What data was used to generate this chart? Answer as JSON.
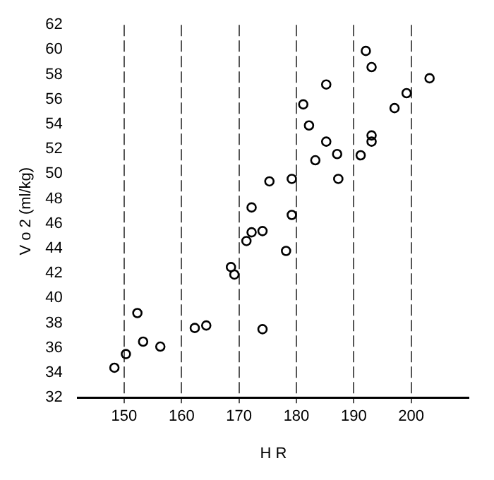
{
  "chart_data": {
    "type": "scatter",
    "xlabel": "H R",
    "ylabel": "V o 2 (ml/kg)",
    "x": [
      148.3,
      150.3,
      152.3,
      153.3,
      156.3,
      162.3,
      164.3,
      168.6,
      169.2,
      171.3,
      172.2,
      174.1,
      174.1,
      172.2,
      175.3,
      179.2,
      179.2,
      178.2,
      185.2,
      181.2,
      182.2,
      185.2,
      183.3,
      187.1,
      187.3,
      192.1,
      193.1,
      203.2,
      199.2,
      197.1,
      193.1,
      193.1,
      191.2
    ],
    "values": [
      34.4,
      35.5,
      38.8,
      36.5,
      36.1,
      37.6,
      37.8,
      42.5,
      41.9,
      44.6,
      45.3,
      45.4,
      37.5,
      47.3,
      49.4,
      49.6,
      46.7,
      43.8,
      57.2,
      55.6,
      53.9,
      52.6,
      51.1,
      51.6,
      49.6,
      59.9,
      58.6,
      57.7,
      56.5,
      55.3,
      53.1,
      52.6,
      51.5
    ],
    "color": "#000000",
    "marker": "circle",
    "grid": "x",
    "xlim": [
      142,
      210
    ],
    "xticks": [
      150,
      160,
      170,
      180,
      190,
      200
    ],
    "ylim": [
      32,
      62
    ],
    "yticks": [
      32,
      34,
      36,
      38,
      40,
      42,
      44,
      46,
      48,
      50,
      52,
      54,
      56,
      58,
      60,
      62
    ]
  }
}
